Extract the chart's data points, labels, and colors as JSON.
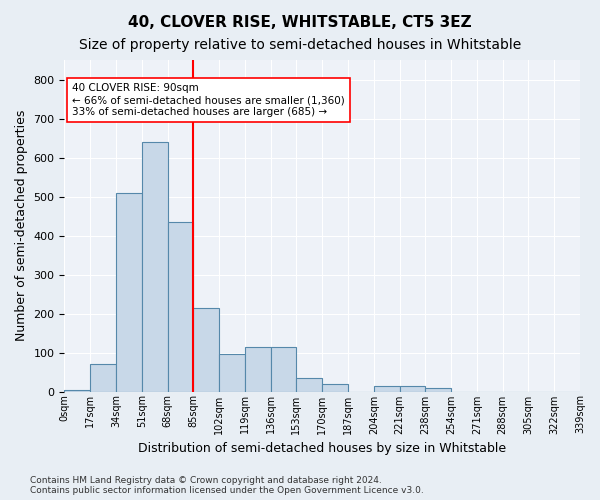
{
  "title1": "40, CLOVER RISE, WHITSTABLE, CT5 3EZ",
  "title2": "Size of property relative to semi-detached houses in Whitstable",
  "xlabel": "Distribution of semi-detached houses by size in Whitstable",
  "ylabel": "Number of semi-detached properties",
  "footnote": "Contains HM Land Registry data © Crown copyright and database right 2024.\nContains public sector information licensed under the Open Government Licence v3.0.",
  "bar_labels": [
    "0sqm",
    "17sqm",
    "34sqm",
    "51sqm",
    "68sqm",
    "85sqm",
    "102sqm",
    "119sqm",
    "136sqm",
    "153sqm",
    "170sqm",
    "187sqm",
    "204sqm",
    "221sqm",
    "238sqm",
    "254sqm",
    "271sqm",
    "288sqm",
    "305sqm",
    "322sqm",
    "339sqm"
  ],
  "bar_values": [
    5,
    70,
    510,
    640,
    435,
    215,
    95,
    115,
    115,
    35,
    20,
    0,
    15,
    15,
    10,
    0,
    0,
    0,
    0,
    0
  ],
  "bar_color": "#c8d8e8",
  "bar_edge_color": "#5588aa",
  "vline_x": 5,
  "vline_color": "red",
  "annotation_text": "40 CLOVER RISE: 90sqm\n← 66% of semi-detached houses are smaller (1,360)\n33% of semi-detached houses are larger (685) →",
  "annotation_box_color": "white",
  "annotation_box_edge_color": "red",
  "ylim": [
    0,
    850
  ],
  "background_color": "#e8eef4",
  "plot_bg_color": "#eef2f8",
  "grid_color": "white",
  "title1_fontsize": 11,
  "title2_fontsize": 10,
  "xlabel_fontsize": 9,
  "ylabel_fontsize": 9
}
